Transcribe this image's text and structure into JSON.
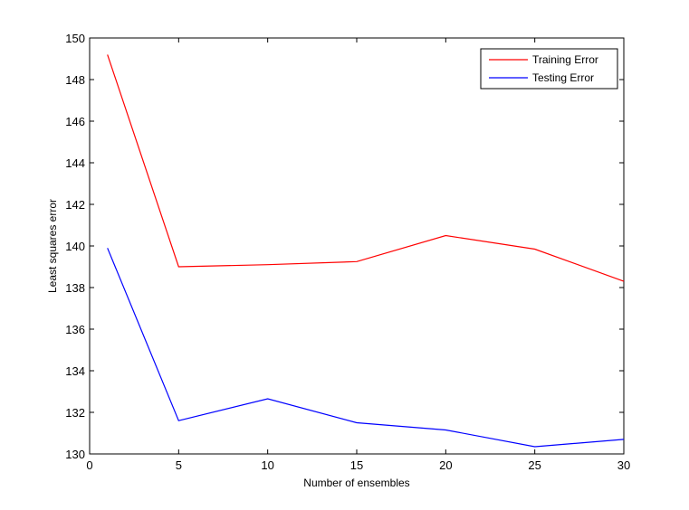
{
  "chart_data": {
    "type": "line",
    "xlabel": "Number of ensembles",
    "ylabel": "Least squares error",
    "xlim": [
      0,
      30
    ],
    "ylim": [
      130,
      150
    ],
    "xticks": [
      "0",
      "5",
      "10",
      "15",
      "20",
      "25",
      "30"
    ],
    "yticks": [
      "130",
      "132",
      "134",
      "136",
      "138",
      "140",
      "142",
      "144",
      "146",
      "148",
      "150"
    ],
    "grid": false,
    "legend_position": "top-right",
    "series": [
      {
        "name": "Training Error",
        "color": "#ff0000",
        "x": [
          1,
          5,
          10,
          15,
          20,
          25,
          30
        ],
        "y": [
          149.2,
          139.0,
          139.1,
          139.25,
          140.5,
          139.85,
          138.3
        ]
      },
      {
        "name": "Testing Error",
        "color": "#0000ff",
        "x": [
          1,
          5,
          10,
          15,
          20,
          25,
          30
        ],
        "y": [
          139.9,
          131.6,
          132.65,
          131.5,
          131.15,
          130.35,
          130.7
        ]
      }
    ]
  }
}
